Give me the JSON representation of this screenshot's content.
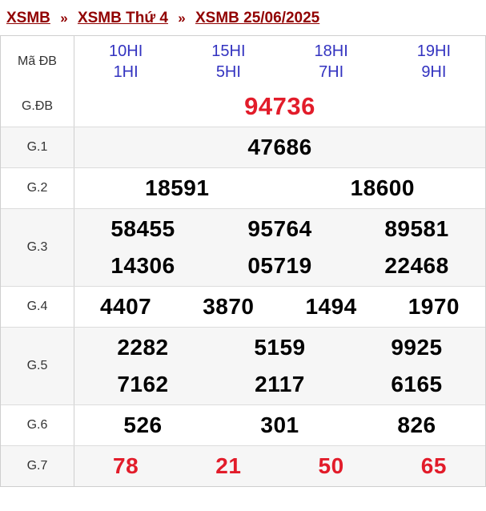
{
  "breadcrumb": {
    "separator": "»",
    "items": [
      {
        "label": "XSMB"
      },
      {
        "label": "XSMB Thứ 4"
      },
      {
        "label": "XSMB 25/06/2025"
      }
    ]
  },
  "table": {
    "header": {
      "label": "Mã ĐB",
      "columns": [
        {
          "line1": "10HI",
          "line2": "1HI"
        },
        {
          "line1": "15HI",
          "line2": "5HI"
        },
        {
          "line1": "18HI",
          "line2": "7HI"
        },
        {
          "line1": "19HI",
          "line2": "9HI"
        }
      ]
    },
    "rows": [
      {
        "label": "G.ĐB",
        "highlight": true,
        "big": true,
        "lines": [
          [
            "94736"
          ]
        ]
      },
      {
        "label": "G.1",
        "highlight": false,
        "big": false,
        "lines": [
          [
            "47686"
          ]
        ]
      },
      {
        "label": "G.2",
        "highlight": false,
        "big": false,
        "lines": [
          [
            "18591",
            "18600"
          ]
        ]
      },
      {
        "label": "G.3",
        "highlight": false,
        "big": false,
        "lines": [
          [
            "58455",
            "95764",
            "89581"
          ],
          [
            "14306",
            "05719",
            "22468"
          ]
        ]
      },
      {
        "label": "G.4",
        "highlight": false,
        "big": false,
        "lines": [
          [
            "4407",
            "3870",
            "1494",
            "1970"
          ]
        ]
      },
      {
        "label": "G.5",
        "highlight": false,
        "big": false,
        "lines": [
          [
            "2282",
            "5159",
            "9925"
          ],
          [
            "7162",
            "2117",
            "6165"
          ]
        ]
      },
      {
        "label": "G.6",
        "highlight": false,
        "big": false,
        "lines": [
          [
            "526",
            "301",
            "826"
          ]
        ]
      },
      {
        "label": "G.7",
        "highlight": true,
        "big": false,
        "lines": [
          [
            "78",
            "21",
            "50",
            "65"
          ]
        ]
      }
    ]
  },
  "colors": {
    "breadcrumb_link": "#910000",
    "header_code_text": "#3333c0",
    "highlight_number": "#e21c2a",
    "number": "#000000",
    "row_alt_bg": "#f6f6f6",
    "table_border": "#cfcfcf"
  }
}
